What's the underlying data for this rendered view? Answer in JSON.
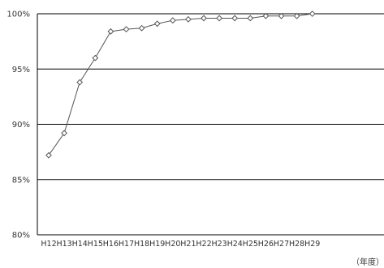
{
  "chart_data": {
    "type": "line",
    "title": "",
    "xlabel": "",
    "ylabel": "",
    "x_unit_label": "（年度）",
    "categories": [
      "H12",
      "H13",
      "H14",
      "H15",
      "H16",
      "H17",
      "H18",
      "H19",
      "H20",
      "H21",
      "H22",
      "H23",
      "H24",
      "H25",
      "H26",
      "H27",
      "H28",
      "H29"
    ],
    "series": [
      {
        "values": [
          87.2,
          89.2,
          93.8,
          96.0,
          98.4,
          98.6,
          98.7,
          99.1,
          99.4,
          99.5,
          99.6,
          99.6,
          99.6,
          99.6,
          99.8,
          99.8,
          99.8,
          100.0
        ]
      }
    ],
    "ylim": [
      80,
      100
    ],
    "yticks": [
      80,
      85,
      90,
      95,
      100
    ],
    "ytick_labels": [
      "80%",
      "85%",
      "90%",
      "95%",
      "100%"
    ],
    "grid": "horizontal",
    "legend": "none",
    "colors": {
      "line": "#555555",
      "marker_fill": "#ffffff",
      "grid": "#000000",
      "axis": "#000000"
    },
    "marker": "diamond-open"
  }
}
